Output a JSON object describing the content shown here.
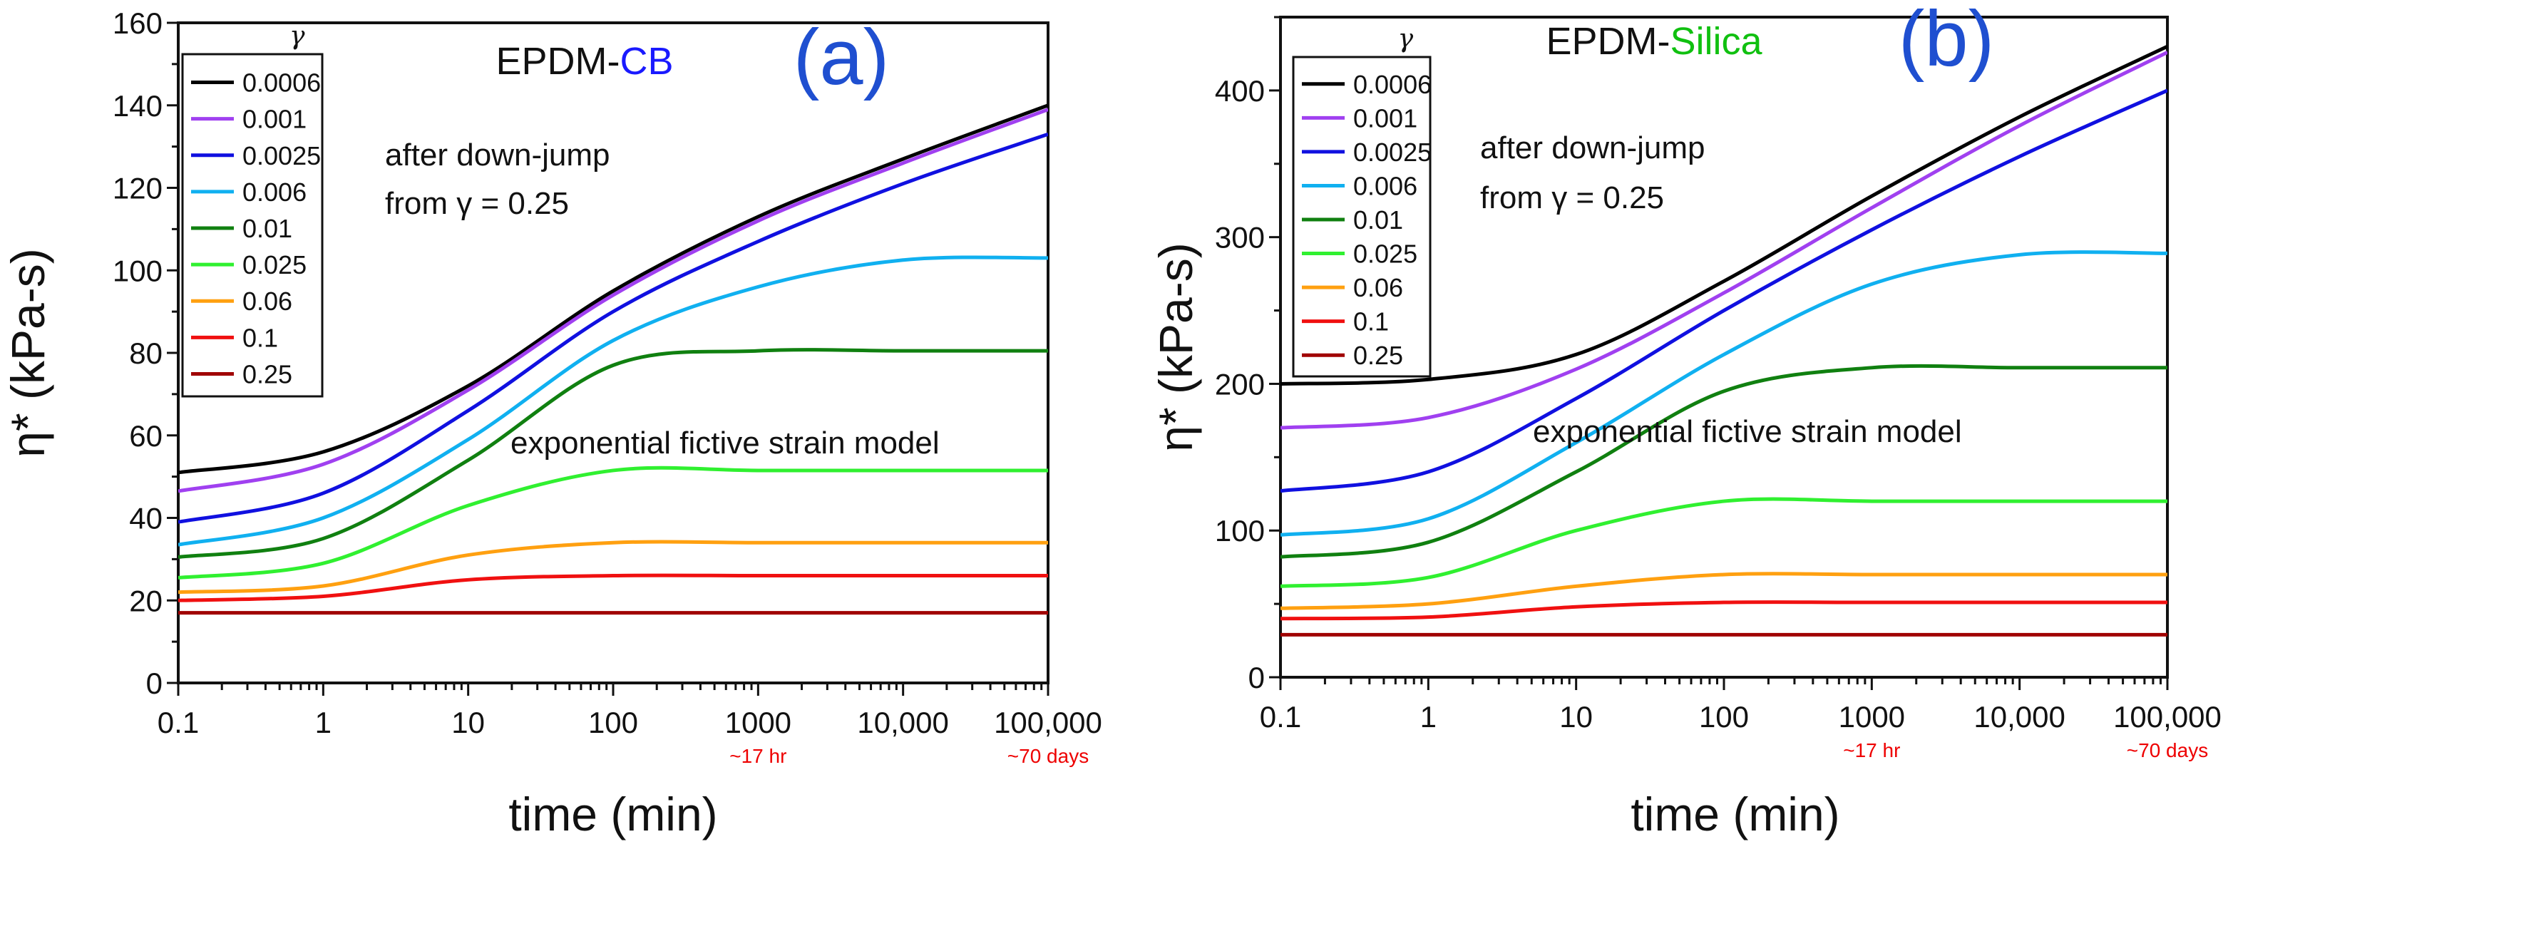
{
  "chart_data": [
    {
      "type": "line",
      "panel_label": "(a)",
      "title_prefix": "EPDM-",
      "title_suffix": "CB",
      "title_suffix_color": "#1a1aff",
      "panel_label_color": "#1f4fd0",
      "xlabel": "time (min)",
      "ylabel": "η*  (kPa-s)",
      "xscale": "log",
      "xlim": [
        0.1,
        100000
      ],
      "ylim": [
        0,
        160
      ],
      "yticks": [
        0,
        20,
        40,
        60,
        80,
        100,
        120,
        140,
        160
      ],
      "ytick_labels": [
        "0",
        "20",
        "40",
        "60",
        "80",
        "100",
        "120",
        "140",
        "160"
      ],
      "xticks": [
        0.1,
        1,
        10,
        100,
        1000,
        10000,
        100000
      ],
      "xtick_labels": [
        "0.1",
        "1",
        "10",
        "100",
        "1000",
        "10,000",
        "100,000"
      ],
      "xtick_notes": [
        {
          "at": 1000,
          "text": "~17 hr"
        },
        {
          "at": 100000,
          "text": "~70 days"
        }
      ],
      "legend_title": "γ",
      "legend_position": "top-left",
      "annotations": [
        "after down-jump",
        "from γ = 0.25",
        "exponential fictive strain model"
      ],
      "x": [
        0.1,
        1,
        10,
        100,
        1000,
        10000,
        100000
      ],
      "series": [
        {
          "name": "0.0006",
          "color": "#000000",
          "values": [
            51,
            56,
            72,
            95,
            113,
            127,
            140
          ]
        },
        {
          "name": "0.001",
          "color": "#a040f0",
          "values": [
            46.5,
            53,
            71,
            94,
            112,
            126,
            139
          ]
        },
        {
          "name": "0.0025",
          "color": "#1010e0",
          "values": [
            39,
            46,
            66,
            90,
            107,
            121,
            133
          ]
        },
        {
          "name": "0.006",
          "color": "#10b0f0",
          "values": [
            33.5,
            40,
            59,
            83,
            96,
            102.5,
            103
          ]
        },
        {
          "name": "0.01",
          "color": "#108010",
          "values": [
            30.5,
            35,
            54,
            77,
            80.5,
            80.5,
            80.5
          ]
        },
        {
          "name": "0.025",
          "color": "#30f030",
          "values": [
            25.5,
            29,
            43,
            51.5,
            51.5,
            51.5,
            51.5
          ]
        },
        {
          "name": "0.06",
          "color": "#ffa010",
          "values": [
            22,
            23.5,
            31,
            34,
            34,
            34,
            34
          ]
        },
        {
          "name": "0.1",
          "color": "#f01010",
          "values": [
            20,
            21,
            25,
            26,
            26,
            26,
            26
          ]
        },
        {
          "name": "0.25",
          "color": "#a00000",
          "values": [
            17,
            17,
            17,
            17,
            17,
            17,
            17
          ]
        }
      ]
    },
    {
      "type": "line",
      "panel_label": "(b)",
      "title_prefix": "EPDM-",
      "title_suffix": "Silica",
      "title_suffix_color": "#10c010",
      "panel_label_color": "#1f4fd0",
      "xlabel": "time (min)",
      "ylabel": "η*  (kPa-s)",
      "xscale": "log",
      "xlim": [
        0.1,
        100000
      ],
      "ylim": [
        0,
        450
      ],
      "yticks": [
        0,
        100,
        200,
        300,
        400
      ],
      "ytick_labels": [
        "0",
        "100",
        "200",
        "300",
        "400"
      ],
      "xticks": [
        0.1,
        1,
        10,
        100,
        1000,
        10000,
        100000
      ],
      "xtick_labels": [
        "0.1",
        "1",
        "10",
        "100",
        "1000",
        "10,000",
        "100,000"
      ],
      "xtick_notes": [
        {
          "at": 1000,
          "text": "~17 hr"
        },
        {
          "at": 100000,
          "text": "~70 days"
        }
      ],
      "legend_title": "γ",
      "legend_position": "top-left",
      "annotations": [
        "after down-jump",
        "from γ = 0.25",
        "exponential fictive strain model"
      ],
      "x": [
        0.1,
        1,
        10,
        100,
        1000,
        10000,
        100000
      ],
      "series": [
        {
          "name": "0.0006",
          "color": "#000000",
          "values": [
            200,
            203,
            220,
            270,
            328,
            382,
            430
          ]
        },
        {
          "name": "0.001",
          "color": "#a040f0",
          "values": [
            170,
            177,
            210,
            262,
            320,
            376,
            426
          ]
        },
        {
          "name": "0.0025",
          "color": "#1010e0",
          "values": [
            127,
            140,
            190,
            250,
            305,
            355,
            400
          ]
        },
        {
          "name": "0.006",
          "color": "#10b0f0",
          "values": [
            97,
            108,
            160,
            220,
            268,
            288,
            289
          ]
        },
        {
          "name": "0.01",
          "color": "#108010",
          "values": [
            82,
            92,
            140,
            195,
            211,
            211,
            211
          ]
        },
        {
          "name": "0.025",
          "color": "#30f030",
          "values": [
            62,
            68,
            100,
            120,
            120,
            120,
            120
          ]
        },
        {
          "name": "0.06",
          "color": "#ffa010",
          "values": [
            47,
            50,
            62,
            70,
            70,
            70,
            70
          ]
        },
        {
          "name": "0.1",
          "color": "#f01010",
          "values": [
            40,
            41,
            48,
            51,
            51,
            51,
            51
          ]
        },
        {
          "name": "0.25",
          "color": "#a00000",
          "values": [
            29,
            29,
            29,
            29,
            29,
            29,
            29
          ]
        }
      ]
    }
  ]
}
